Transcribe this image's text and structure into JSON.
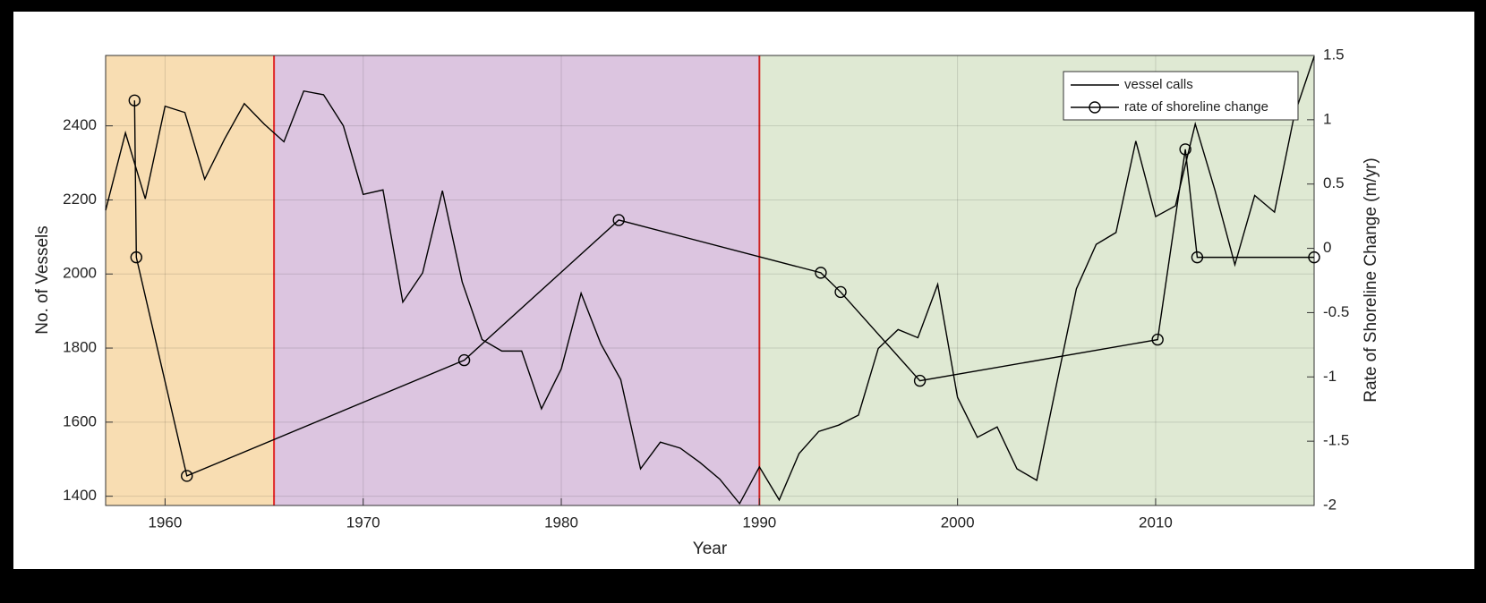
{
  "chart_data": {
    "type": "line",
    "xlabel": "Year",
    "ylabel": "No. of Vessels",
    "y2label": "Rate of Shoreline Change (m/yr)",
    "xlim": [
      1957,
      2018
    ],
    "ylim": [
      1375,
      2590
    ],
    "y2lim": [
      -2,
      1.5
    ],
    "xticks": [
      1960,
      1970,
      1980,
      1990,
      2000,
      2010
    ],
    "yticks": [
      1400,
      1600,
      1800,
      2000,
      2200,
      2400
    ],
    "y2ticks": [
      -2,
      -1.5,
      -1,
      -0.5,
      0,
      0.5,
      1,
      1.5
    ],
    "grid": true,
    "legend": "top-right",
    "regions": [
      {
        "start": 1957,
        "end": 1965.5,
        "color": "#f8ddb2"
      },
      {
        "start": 1965.5,
        "end": 1990,
        "color": "#dcc5e0"
      },
      {
        "start": 1990,
        "end": 2018,
        "color": "#dfe9d3"
      }
    ],
    "region_border_color": "#e02828",
    "series": [
      {
        "name": "vessel calls",
        "color": "#000000",
        "marker": false,
        "x": [
          1957,
          1958,
          1959,
          1960,
          1961,
          1962,
          1963,
          1964,
          1965,
          1966,
          1967,
          1968,
          1969,
          1970,
          1971,
          1972,
          1973,
          1974,
          1975,
          1976,
          1977,
          1978,
          1979,
          1980,
          1981,
          1982,
          1983,
          1984,
          1985,
          1986,
          1987,
          1988,
          1989,
          1990,
          1991,
          1992,
          1993,
          1994,
          1995,
          1996,
          1997,
          1998,
          1999,
          2000,
          2001,
          2002,
          2003,
          2004,
          2005,
          2006,
          2007,
          2008,
          2009,
          2010,
          2011,
          2012,
          2013,
          2014,
          2015,
          2016,
          2017,
          2018
        ],
        "values": [
          2172,
          2381,
          2203,
          2453,
          2436,
          2256,
          2364,
          2460,
          2405,
          2357,
          2494,
          2484,
          2400,
          2215,
          2227,
          1924,
          2003,
          2225,
          1978,
          1823,
          1792,
          1792,
          1636,
          1744,
          1948,
          1811,
          1715,
          1474,
          1546,
          1530,
          1491,
          1446,
          1380,
          1479,
          1390,
          1515,
          1575,
          1592,
          1619,
          1799,
          1850,
          1828,
          1972,
          1667,
          1559,
          1587,
          1474,
          1443,
          1703,
          1960,
          2080,
          2112,
          2359,
          2155,
          2184,
          2405,
          2225,
          2025,
          2212,
          2167,
          2429,
          2587
        ]
      },
      {
        "name": "rate of shoreline change",
        "color": "#000000",
        "marker": true,
        "axis": "y2",
        "x": [
          1958.46,
          1958.55,
          1961.1,
          1975.1,
          1982.9,
          1993.1,
          1994.1,
          1998.1,
          2010.1,
          2011.5,
          2012.1,
          2018
        ],
        "values": [
          1.15,
          -0.07,
          -1.77,
          -0.87,
          0.22,
          -0.19,
          -0.34,
          -1.03,
          -0.71,
          0.77,
          -0.07,
          -0.07
        ]
      }
    ]
  }
}
